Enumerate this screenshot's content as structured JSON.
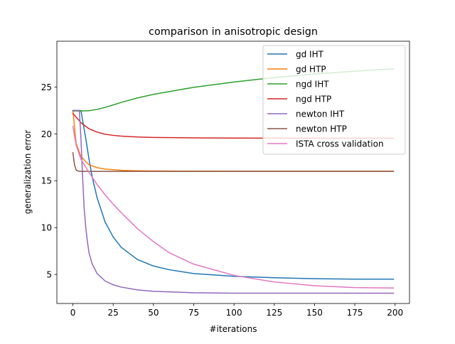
{
  "chart_data": {
    "type": "line",
    "title": "comparison in anisotropic design",
    "xlabel": "#iterations",
    "ylabel": "generalization error",
    "xlim": [
      -9.95,
      208.95
    ],
    "ylim": [
      1.9,
      29.9
    ],
    "xticks": [
      0,
      25,
      50,
      75,
      100,
      125,
      150,
      175,
      200
    ],
    "yticks": [
      5,
      10,
      15,
      20,
      25
    ],
    "grid": false,
    "legend_position": "upper-right",
    "series": [
      {
        "name": "gd IHT",
        "color": "#1f77b4",
        "x": [
          0,
          5,
          6,
          8,
          10,
          12,
          15,
          20,
          25,
          30,
          40,
          50,
          60,
          75,
          100,
          125,
          150,
          175,
          199
        ],
        "y": [
          22.5,
          22.5,
          21.5,
          19.5,
          17.3,
          15.4,
          13.2,
          10.6,
          9.0,
          7.9,
          6.6,
          5.9,
          5.5,
          5.1,
          4.8,
          4.65,
          4.55,
          4.5,
          4.5
        ]
      },
      {
        "name": "gd HTP",
        "color": "#ff7f0e",
        "x": [
          0,
          2,
          5,
          10,
          15,
          20,
          30,
          40,
          50,
          75,
          100,
          150,
          199
        ],
        "y": [
          22.5,
          19.0,
          17.6,
          16.7,
          16.4,
          16.25,
          16.12,
          16.07,
          16.05,
          16.03,
          16.02,
          16.02,
          16.02
        ]
      },
      {
        "name": "ngd IHT",
        "color": "#2ca02c",
        "x": [
          0,
          5,
          10,
          15,
          20,
          25,
          30,
          40,
          50,
          75,
          100,
          125,
          150,
          175,
          199
        ],
        "y": [
          22.45,
          22.45,
          22.48,
          22.62,
          22.84,
          23.1,
          23.37,
          23.84,
          24.23,
          24.98,
          25.55,
          26.02,
          26.4,
          26.7,
          26.95
        ]
      },
      {
        "name": "ngd HTP",
        "color": "#d62728",
        "x": [
          0,
          5,
          10,
          15,
          20,
          25,
          30,
          40,
          50,
          75,
          100,
          150,
          199
        ],
        "y": [
          22.2,
          21.2,
          20.55,
          20.2,
          19.97,
          19.85,
          19.77,
          19.68,
          19.63,
          19.58,
          19.56,
          19.55,
          19.55
        ]
      },
      {
        "name": "newton IHT",
        "color": "#9467bd",
        "x": [
          0,
          4,
          5,
          6,
          7,
          8,
          9,
          10,
          12,
          15,
          20,
          25,
          30,
          40,
          50,
          75,
          100,
          125,
          150,
          199
        ],
        "y": [
          22.5,
          22.5,
          19.5,
          15.5,
          12.0,
          10.0,
          8.5,
          7.3,
          6.1,
          5.1,
          4.3,
          3.9,
          3.65,
          3.35,
          3.2,
          3.05,
          3.0,
          3.0,
          3.0,
          3.0
        ]
      },
      {
        "name": "newton HTP",
        "color": "#8c564b",
        "x": [
          0,
          1,
          2,
          3,
          4,
          6,
          10,
          50,
          100,
          150,
          199
        ],
        "y": [
          18.0,
          16.7,
          16.15,
          16.05,
          16.02,
          16.0,
          16.0,
          16.0,
          16.0,
          16.0,
          16.0
        ]
      },
      {
        "name": "ISTA cross validation",
        "color": "#e377c2",
        "x": [
          0,
          2,
          5,
          10,
          15,
          20,
          25,
          30,
          40,
          50,
          60,
          75,
          100,
          125,
          150,
          175,
          199
        ],
        "y": [
          20.8,
          18.8,
          17.3,
          15.9,
          14.6,
          13.5,
          12.5,
          11.6,
          9.9,
          8.5,
          7.3,
          6.1,
          4.9,
          4.2,
          3.8,
          3.6,
          3.55
        ]
      }
    ]
  }
}
